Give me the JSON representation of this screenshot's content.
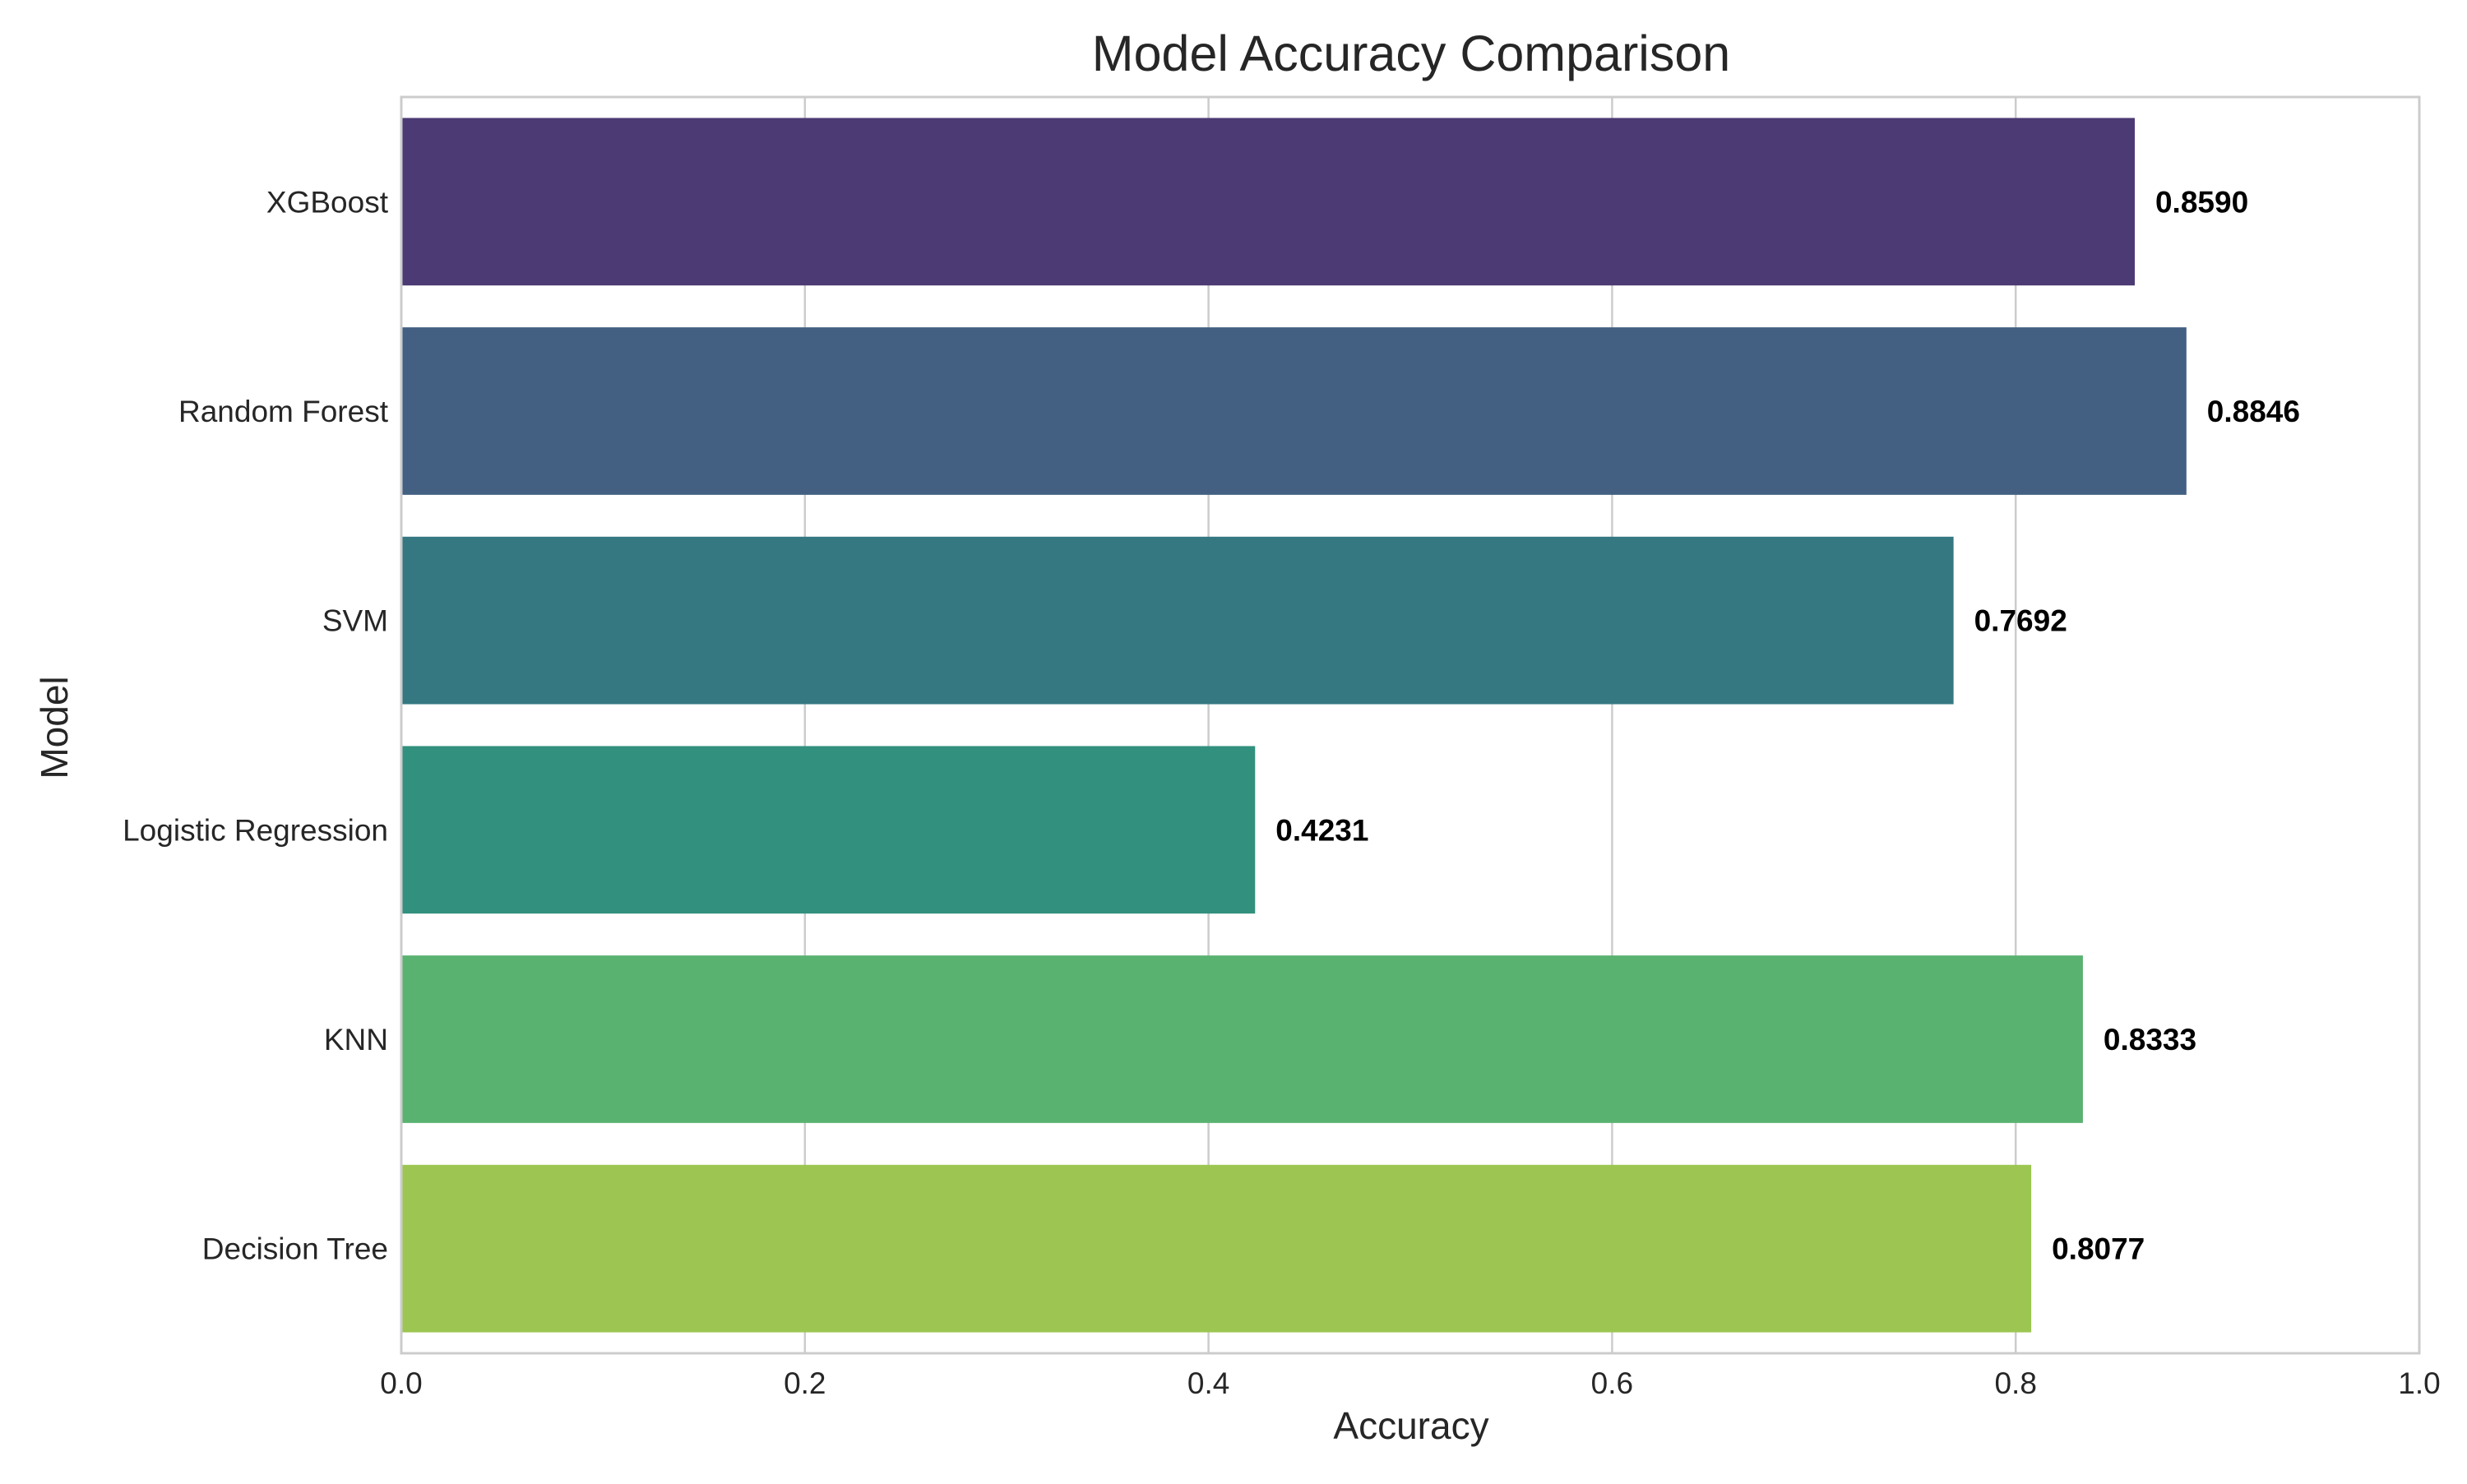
{
  "chart_data": {
    "type": "bar",
    "orientation": "horizontal",
    "title": "Model Accuracy Comparison",
    "xlabel": "Accuracy",
    "ylabel": "Model",
    "categories": [
      "XGBoost",
      "Random Forest",
      "SVM",
      "Logistic Regression",
      "KNN",
      "Decision Tree"
    ],
    "values": [
      0.859,
      0.8846,
      0.7692,
      0.4231,
      0.8333,
      0.8077
    ],
    "value_labels": [
      "0.8590",
      "0.8846",
      "0.7692",
      "0.4231",
      "0.8333",
      "0.8077"
    ],
    "bar_colors": [
      "#4b3a73",
      "#436083",
      "#357882",
      "#31907e",
      "#5ab271",
      "#9cc651"
    ],
    "xlim": [
      0,
      1.0
    ],
    "xticks": [
      0.0,
      0.2,
      0.4,
      0.6,
      0.8,
      1.0
    ],
    "xtick_labels": [
      "0.0",
      "0.2",
      "0.4",
      "0.6",
      "0.8",
      "1.0"
    ],
    "grid": true,
    "legend": "none"
  }
}
